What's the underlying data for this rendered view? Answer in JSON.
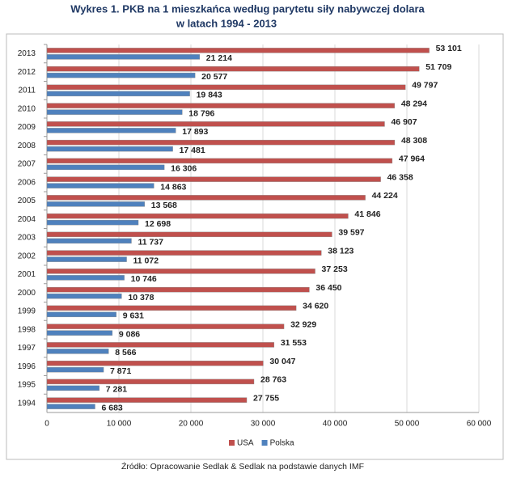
{
  "chart_data": {
    "type": "hbar",
    "title": "Wykres 1. PKB na 1 mieszkańca według parytetu siły nabywczej dolara",
    "subtitle": "w latach 1994 - 2013",
    "source": "Źródło: Opracowanie Sedlak & Sedlak na podstawie danych IMF",
    "categories": [
      "2013",
      "2012",
      "2011",
      "2010",
      "2009",
      "2008",
      "2007",
      "2006",
      "2005",
      "2004",
      "2003",
      "2002",
      "2001",
      "2000",
      "1999",
      "1998",
      "1997",
      "1996",
      "1995",
      "1994"
    ],
    "series": [
      {
        "name": "USA",
        "color": "#c0504d",
        "label_color": "#953735",
        "values": [
          53101,
          51709,
          49797,
          48294,
          46907,
          48308,
          47964,
          46358,
          44224,
          41846,
          39597,
          38123,
          37253,
          36450,
          34620,
          32929,
          31553,
          30047,
          28763,
          27755
        ],
        "value_labels": [
          "53 101",
          "51 709",
          "49 797",
          "48 294",
          "46 907",
          "48 308",
          "47 964",
          "46 358",
          "44 224",
          "41 846",
          "39 597",
          "38 123",
          "37 253",
          "36 450",
          "34 620",
          "32 929",
          "31 553",
          "30 047",
          "28 763",
          "27 755"
        ]
      },
      {
        "name": "Polska",
        "color": "#4f81bd",
        "label_color": "#1f497d",
        "values": [
          21214,
          20577,
          19843,
          18796,
          17893,
          17481,
          16306,
          14863,
          13568,
          12698,
          11737,
          11072,
          10746,
          10378,
          9631,
          9086,
          8566,
          7871,
          7281,
          6683
        ],
        "value_labels": [
          "21 214",
          "20 577",
          "19 843",
          "18 796",
          "17 893",
          "17 481",
          "16 306",
          "14 863",
          "13 568",
          "12 698",
          "11 737",
          "11 072",
          "10 746",
          "10 378",
          "9 631",
          "9 086",
          "8 566",
          "7 871",
          "7 281",
          "6 683"
        ]
      }
    ],
    "xlim": [
      0,
      60000
    ],
    "xticks": [
      0,
      {
        "value": 10000,
        "label": "10 000"
      },
      {
        "value": 20000,
        "label": "20 000"
      },
      {
        "value": 30000,
        "label": "30 000"
      },
      {
        "value": 40000,
        "label": "40 000"
      },
      {
        "value": 50000,
        "label": "50 000"
      },
      {
        "value": 60000,
        "label": "60 000"
      }
    ],
    "grid": true,
    "legend": "bottom"
  }
}
